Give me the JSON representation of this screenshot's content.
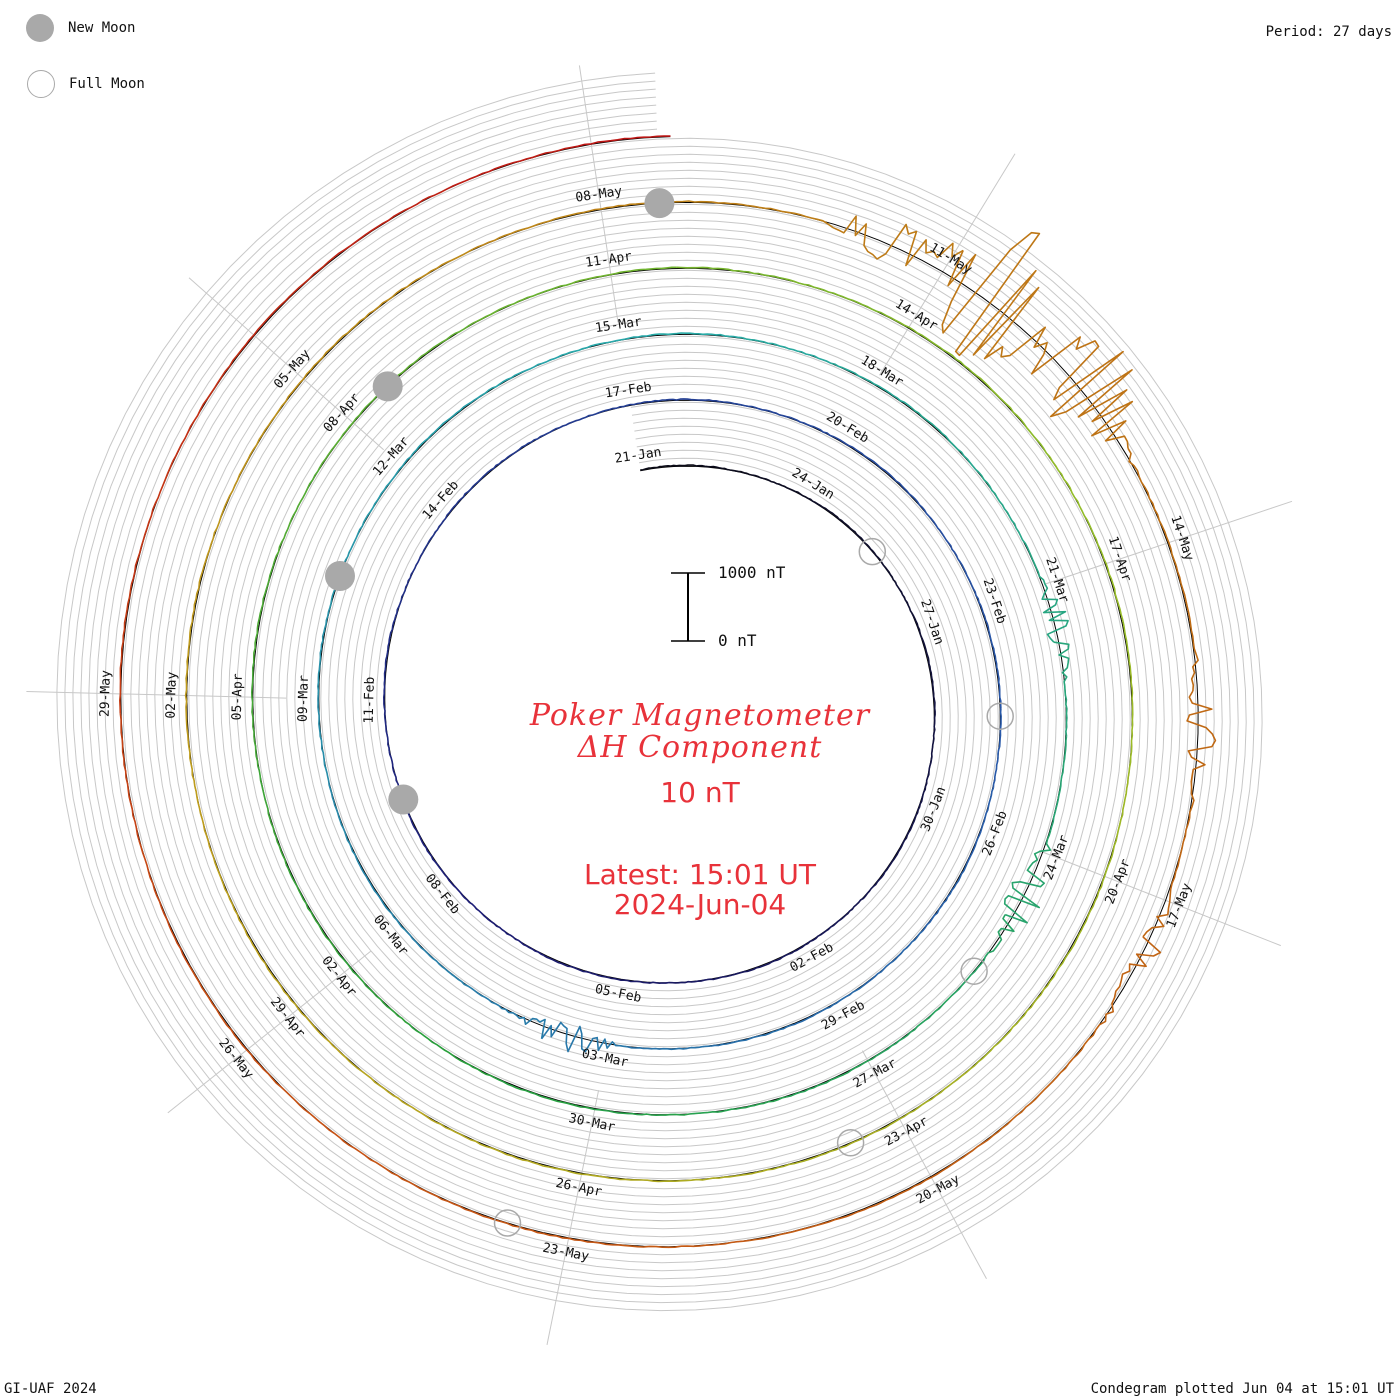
{
  "legend": {
    "new_moon": "New Moon",
    "full_moon": "Full Moon"
  },
  "period_label": "Period: 27 days",
  "footer": {
    "left": "GI-UAF 2024",
    "right": "Condegram plotted Jun 04 at 15:01 UT"
  },
  "scale_bar": {
    "top_label": "1000 nT",
    "bottom_label": "0 nT"
  },
  "colors": {
    "title": "#e8323a",
    "grid": "#c8c8c8",
    "moon": "#a9a9a9"
  },
  "chart_data": {
    "type": "condegram",
    "title_line1": "Poker Magnetometer",
    "title_line2": "ΔH Component",
    "subtitle": "10 nT",
    "latest_time": "Latest: 15:01 UT",
    "latest_date": "2024-Jun-04",
    "period_days": 27,
    "start_date": "2024-01-21",
    "end_date": "2024-06-04",
    "scale_nT": [
      0,
      1000
    ],
    "date_labels": [
      "21-Jan",
      "24-Jan",
      "27-Jan",
      "30-Jan",
      "02-Feb",
      "05-Feb",
      "08-Feb",
      "11-Feb",
      "14-Feb",
      "17-Feb",
      "20-Feb",
      "23-Feb",
      "26-Feb",
      "29-Feb",
      "03-Mar",
      "06-Mar",
      "09-Mar",
      "12-Mar",
      "15-Mar",
      "18-Mar",
      "21-Mar",
      "24-Mar",
      "27-Mar",
      "30-Mar",
      "02-Apr",
      "05-Apr",
      "08-Apr",
      "11-Apr",
      "14-Apr",
      "17-Apr",
      "20-Apr",
      "23-Apr",
      "26-Apr",
      "29-Apr",
      "02-May",
      "05-May",
      "08-May",
      "11-May",
      "14-May",
      "17-May",
      "20-May",
      "23-May",
      "26-May",
      "29-May"
    ],
    "new_moons": [
      "2024-02-09",
      "2024-03-10",
      "2024-04-08",
      "2024-05-08"
    ],
    "full_moons": [
      "2024-01-25",
      "2024-02-24",
      "2024-03-25",
      "2024-04-23",
      "2024-05-23"
    ],
    "disturbances": [
      {
        "date": "2024-03-03",
        "peak_nT": 300
      },
      {
        "date": "2024-03-24",
        "peak_nT": 420
      },
      {
        "date": "2024-03-21",
        "peak_nT": 230
      },
      {
        "date": "2024-05-10",
        "peak_nT": 400
      },
      {
        "date": "2024-05-11",
        "peak_nT": 1400
      },
      {
        "date": "2024-05-12",
        "peak_nT": 900
      },
      {
        "date": "2024-05-15",
        "peak_nT": 280
      },
      {
        "date": "2024-05-17",
        "peak_nT": 250
      }
    ]
  }
}
